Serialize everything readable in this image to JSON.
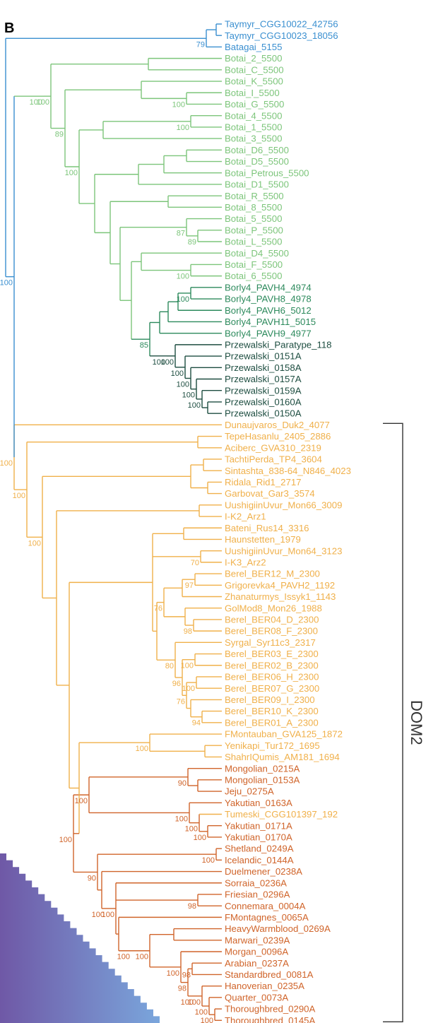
{
  "panel_label": "B",
  "group_label": "DOM2",
  "colors": {
    "blue": "#3a8fd0",
    "green": "#7cc57a",
    "darkgreen": "#2c8a5c",
    "dark": "#1d4d40",
    "orange": "#f0b04a",
    "red": "#d0642a",
    "heat_dark": "#6f58a6",
    "heat_light": "#7aa6dc",
    "bracket": "#333333"
  },
  "leaves": [
    {
      "label": "Taymyr_CGG10022_42756",
      "c": "blue"
    },
    {
      "label": "Taymyr_CGG10023_18056",
      "c": "blue"
    },
    {
      "label": "Batagai_5155",
      "c": "blue"
    },
    {
      "label": "Botai_2_5500",
      "c": "green"
    },
    {
      "label": "Botai_C_5500",
      "c": "green"
    },
    {
      "label": "Botai_K_5500",
      "c": "green"
    },
    {
      "label": "Botai_I_5500",
      "c": "green"
    },
    {
      "label": "Botai_G_5500",
      "c": "green"
    },
    {
      "label": "Botai_4_5500",
      "c": "green"
    },
    {
      "label": "Botai_1_5500",
      "c": "green"
    },
    {
      "label": "Botai_3_5500",
      "c": "green"
    },
    {
      "label": "Botai_D6_5500",
      "c": "green"
    },
    {
      "label": "Botai_D5_5500",
      "c": "green"
    },
    {
      "label": "Botai_Petrous_5500",
      "c": "green"
    },
    {
      "label": "Botai_D1_5500",
      "c": "green"
    },
    {
      "label": "Botai_R_5500",
      "c": "green"
    },
    {
      "label": "Botai_8_5500",
      "c": "green"
    },
    {
      "label": "Botai_5_5500",
      "c": "green"
    },
    {
      "label": "Botai_P_5500",
      "c": "green"
    },
    {
      "label": "Botai_L_5500",
      "c": "green"
    },
    {
      "label": "Botai_D4_5500",
      "c": "green"
    },
    {
      "label": "Botai_F_5500",
      "c": "green"
    },
    {
      "label": "Botai_6_5500",
      "c": "green"
    },
    {
      "label": "Borly4_PAVH4_4974",
      "c": "darkgreen"
    },
    {
      "label": "Borly4_PAVH8_4978",
      "c": "darkgreen"
    },
    {
      "label": "Borly4_PAVH6_5012",
      "c": "darkgreen"
    },
    {
      "label": "Borly4_PAVH11_5015",
      "c": "darkgreen"
    },
    {
      "label": "Borly4_PAVH9_4977",
      "c": "darkgreen"
    },
    {
      "label": "Przewalski_Paratype_118",
      "c": "dark"
    },
    {
      "label": "Przewalski_0151A",
      "c": "dark"
    },
    {
      "label": "Przewalski_0158A",
      "c": "dark"
    },
    {
      "label": "Przewalski_0157A",
      "c": "dark"
    },
    {
      "label": "Przewalski_0159A",
      "c": "dark"
    },
    {
      "label": "Przewalski_0160A",
      "c": "dark"
    },
    {
      "label": "Przewalski_0150A",
      "c": "dark"
    },
    {
      "label": "Dunaujvaros_Duk2_4077",
      "c": "orange"
    },
    {
      "label": "TepeHasanlu_2405_2886",
      "c": "orange"
    },
    {
      "label": "Aciberc_GVA310_2319",
      "c": "orange"
    },
    {
      "label": "TachtiPerda_TP4_3604",
      "c": "orange"
    },
    {
      "label": "Sintashta_838-64_N846_4023",
      "c": "orange"
    },
    {
      "label": "Ridala_Rid1_2717",
      "c": "orange"
    },
    {
      "label": "Garbovat_Gar3_3574",
      "c": "orange"
    },
    {
      "label": "UushigiinUvur_Mon66_3009",
      "c": "orange"
    },
    {
      "label": "I-K2_Arz1",
      "c": "orange"
    },
    {
      "label": "Bateni_Rus14_3316",
      "c": "orange"
    },
    {
      "label": "Haunstetten_1979",
      "c": "orange"
    },
    {
      "label": "UushigiinUvur_Mon64_3123",
      "c": "orange"
    },
    {
      "label": "I-K3_Arz2",
      "c": "orange"
    },
    {
      "label": "Berel_BER12_M_2300",
      "c": "orange"
    },
    {
      "label": "Grigorevka4_PAVH2_1192",
      "c": "orange"
    },
    {
      "label": "Zhanaturmys_Issyk1_1143",
      "c": "orange"
    },
    {
      "label": "GolMod8_Mon26_1988",
      "c": "orange"
    },
    {
      "label": "Berel_BER04_D_2300",
      "c": "orange"
    },
    {
      "label": "Berel_BER08_F_2300",
      "c": "orange"
    },
    {
      "label": "Syrgal_Syr11c3_2317",
      "c": "orange"
    },
    {
      "label": "Berel_BER03_E_2300",
      "c": "orange"
    },
    {
      "label": "Berel_BER02_B_2300",
      "c": "orange"
    },
    {
      "label": "Berel_BER06_H_2300",
      "c": "orange"
    },
    {
      "label": "Berel_BER07_G_2300",
      "c": "orange"
    },
    {
      "label": "Berel_BER09_I_2300",
      "c": "orange"
    },
    {
      "label": "Berel_BER10_K_2300",
      "c": "orange"
    },
    {
      "label": "Berel_BER01_A_2300",
      "c": "orange"
    },
    {
      "label": "FMontauban_GVA125_1872",
      "c": "orange"
    },
    {
      "label": "Yenikapi_Tur172_1695",
      "c": "orange"
    },
    {
      "label": "ShahrIQumis_AM181_1694",
      "c": "orange"
    },
    {
      "label": "Mongolian_0215A",
      "c": "red"
    },
    {
      "label": "Mongolian_0153A",
      "c": "red"
    },
    {
      "label": "Jeju_0275A",
      "c": "red"
    },
    {
      "label": "Yakutian_0163A",
      "c": "red"
    },
    {
      "label": "Tumeski_CGG101397_192",
      "c": "orange"
    },
    {
      "label": "Yakutian_0171A",
      "c": "red"
    },
    {
      "label": "Yakutian_0170A",
      "c": "red"
    },
    {
      "label": "Shetland_0249A",
      "c": "red"
    },
    {
      "label": "Icelandic_0144A",
      "c": "red"
    },
    {
      "label": "Duelmener_0238A",
      "c": "red"
    },
    {
      "label": "Sorraia_0236A",
      "c": "red"
    },
    {
      "label": "Friesian_0296A",
      "c": "red"
    },
    {
      "label": "Connemara_0004A",
      "c": "red"
    },
    {
      "label": "FMontagnes_0065A",
      "c": "red"
    },
    {
      "label": "HeavyWarmblood_0269A",
      "c": "red"
    },
    {
      "label": "Marwari_0239A",
      "c": "red"
    },
    {
      "label": "Morgan_0096A",
      "c": "red"
    },
    {
      "label": "Arabian_0237A",
      "c": "red"
    },
    {
      "label": "Standardbred_0081A",
      "c": "red"
    },
    {
      "label": "Hanoverian_0235A",
      "c": "red"
    },
    {
      "label": "Quarter_0073A",
      "c": "red"
    },
    {
      "label": "Thoroughbred_0290A",
      "c": "red"
    },
    {
      "label": "Thoroughbred_0145A",
      "c": "red"
    }
  ],
  "supports": [
    "79",
    "100",
    "100",
    "100",
    "100",
    "91",
    "89",
    "100",
    "87",
    "89",
    "100",
    "100",
    "85",
    "100",
    "100",
    "100",
    "100",
    "100",
    "100",
    "100",
    "100",
    "100",
    "100",
    "76",
    "70",
    "97",
    "98",
    "80",
    "96",
    "76",
    "100",
    "100",
    "94",
    "100",
    "90",
    "100",
    "100",
    "100",
    "90",
    "100",
    "98",
    "100",
    "98",
    "98",
    "100",
    "100",
    "100",
    "100"
  ]
}
